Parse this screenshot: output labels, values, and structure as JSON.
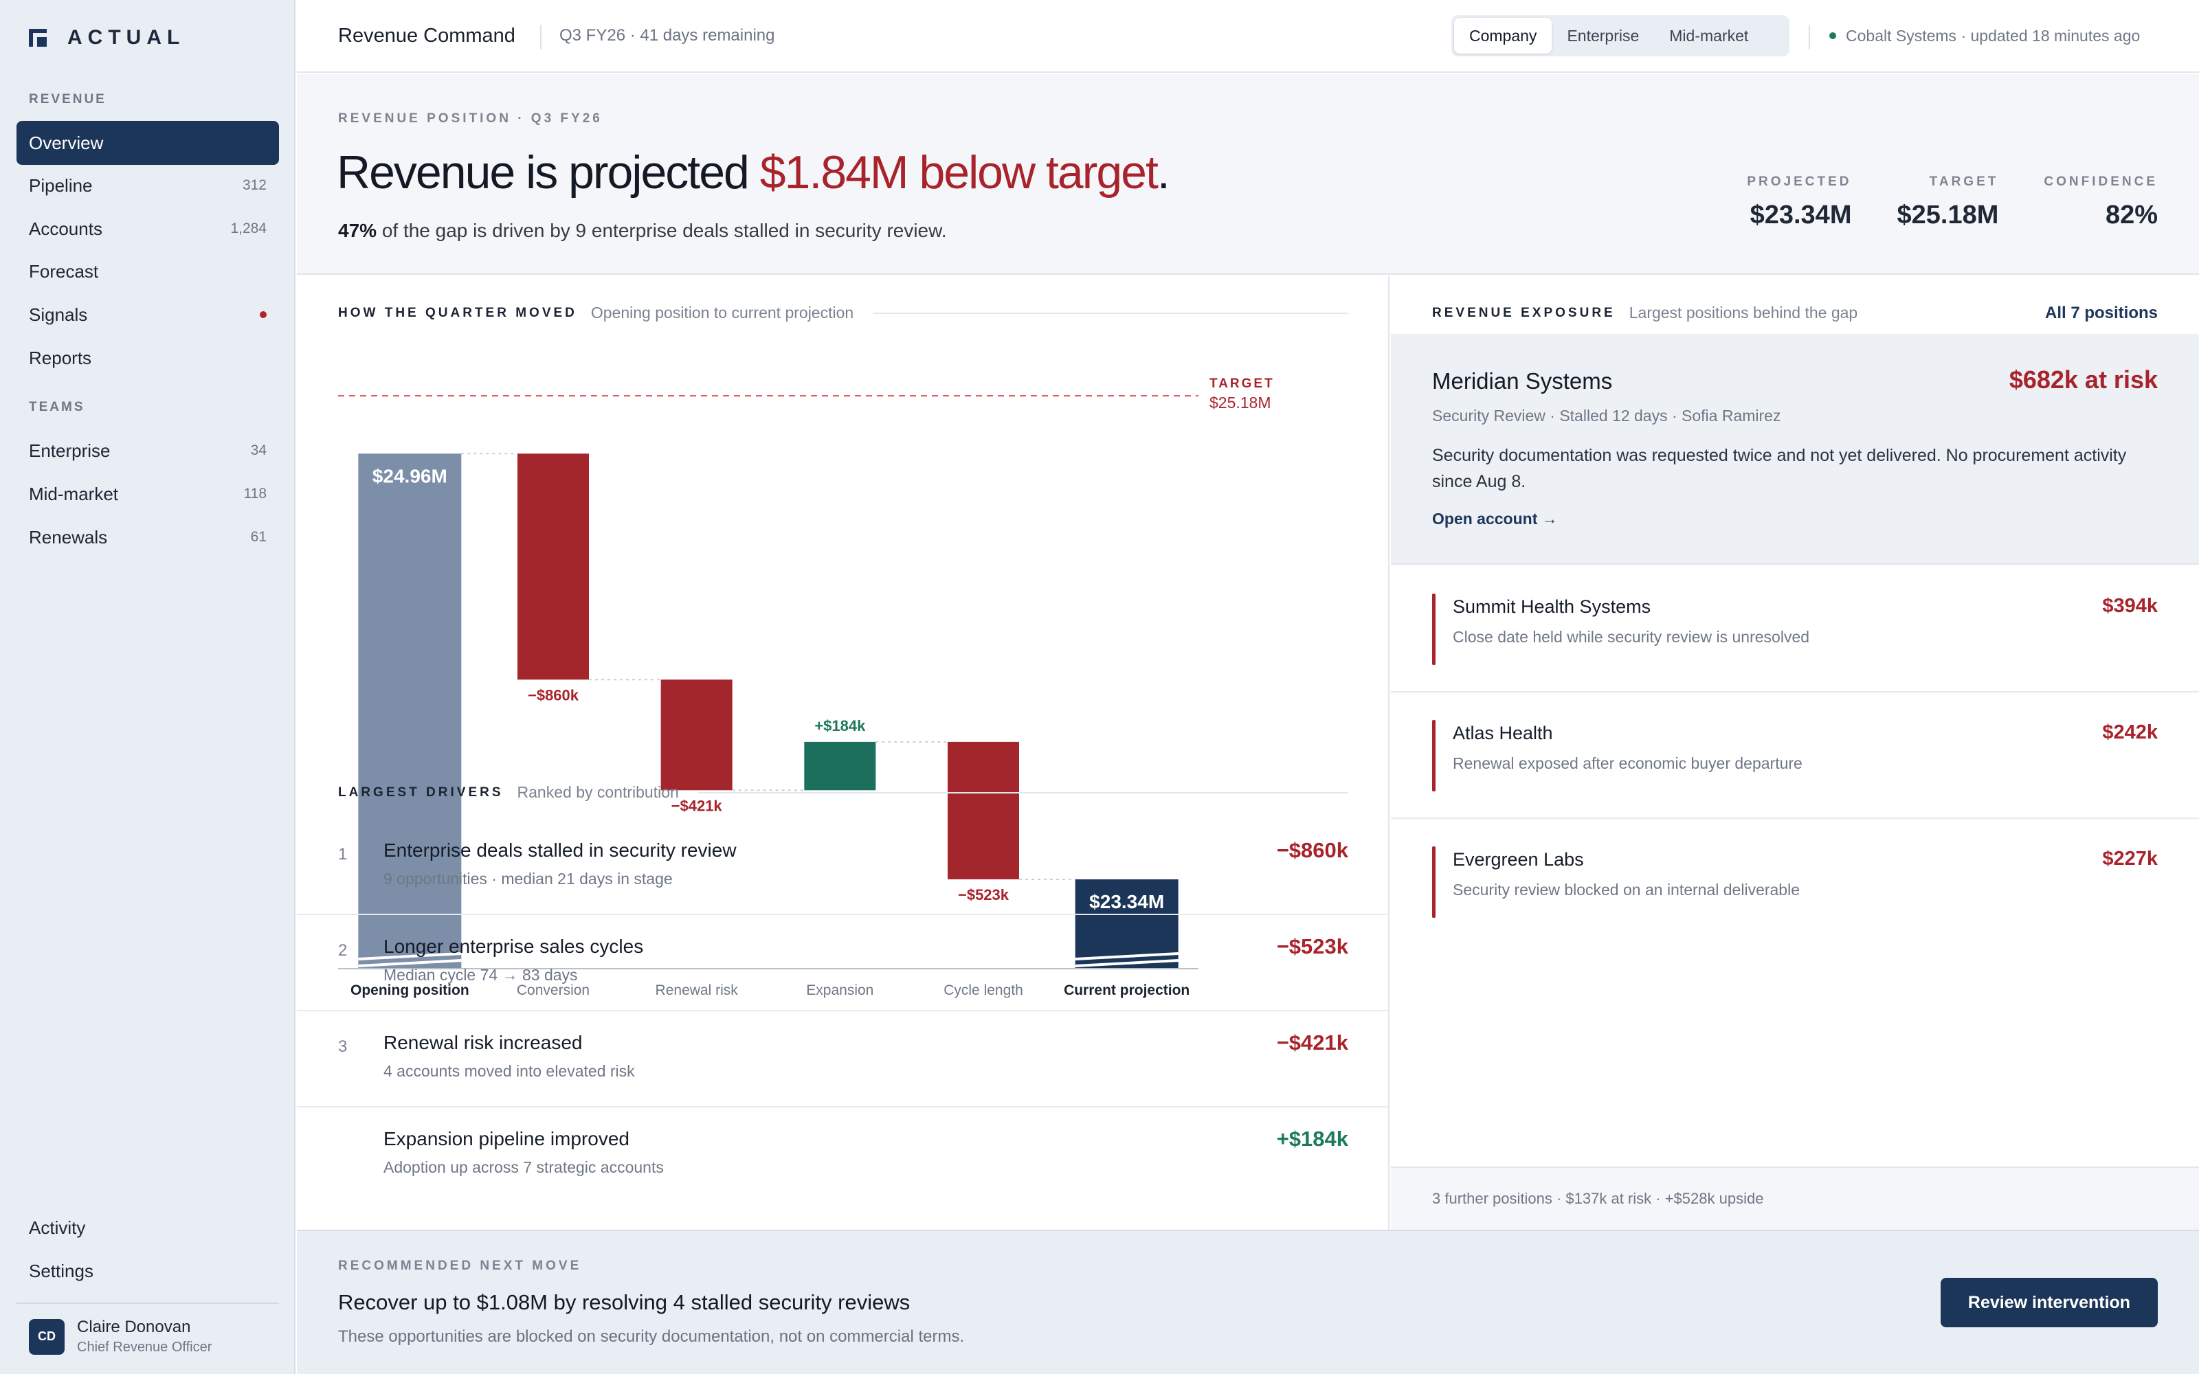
{
  "brand": {
    "name": "ACTUAL"
  },
  "sidebar": {
    "section_revenue": "REVENUE",
    "revenue_items": [
      {
        "label": "Overview",
        "count": "",
        "active": true
      },
      {
        "label": "Pipeline",
        "count": "312"
      },
      {
        "label": "Accounts",
        "count": "1,284"
      },
      {
        "label": "Forecast",
        "count": ""
      },
      {
        "label": "Signals",
        "count": "",
        "alert": true
      },
      {
        "label": "Reports",
        "count": ""
      }
    ],
    "section_teams": "TEAMS",
    "team_items": [
      {
        "label": "Enterprise",
        "count": "34"
      },
      {
        "label": "Mid-market",
        "count": "118"
      },
      {
        "label": "Renewals",
        "count": "61"
      }
    ],
    "bottom_items": [
      {
        "label": "Activity"
      },
      {
        "label": "Settings"
      }
    ],
    "user": {
      "initials": "CD",
      "name": "Claire Donovan",
      "role": "Chief Revenue Officer"
    }
  },
  "header": {
    "title": "Revenue Command",
    "quarter_info": "Q3 FY26 · 41 days remaining",
    "segments": [
      "Company",
      "Enterprise",
      "Mid-market"
    ],
    "active_segment": "Company",
    "status": "Cobalt Systems · updated 18 minutes ago"
  },
  "hero": {
    "eyebrow": "REVENUE POSITION · Q3 FY26",
    "headline_prefix": "Revenue is projected ",
    "headline_highlight": "$1.84M below target",
    "headline_suffix": ".",
    "sub_bold": "47%",
    "sub_rest": " of the gap is driven by 9 enterprise deals stalled in security review.",
    "kpis": [
      {
        "label": "PROJECTED",
        "value": "$23.34M"
      },
      {
        "label": "TARGET",
        "value": "$25.18M"
      },
      {
        "label": "CONFIDENCE",
        "value": "82%"
      }
    ]
  },
  "waterfall": {
    "title": "HOW THE QUARTER MOVED",
    "subtitle": "Opening position to current projection"
  },
  "chart_data": {
    "type": "bar",
    "subtype": "waterfall",
    "units": "USD millions",
    "categories": [
      "Opening position",
      "Conversion",
      "Renewal risk",
      "Expansion",
      "Cycle length",
      "Current projection"
    ],
    "values": [
      24.96,
      -0.86,
      -0.421,
      0.184,
      -0.523,
      23.34
    ],
    "kinds": [
      "total",
      "delta",
      "delta",
      "delta",
      "delta",
      "total"
    ],
    "labels": [
      "$24.96M",
      "−$860k",
      "−$421k",
      "+$184k",
      "−$523k",
      "$23.34M"
    ],
    "target": 25.18,
    "target_label": "TARGET",
    "target_value_label": "$25.18M",
    "ylim": [
      23.0,
      25.4
    ],
    "axis_break": true,
    "colors": {
      "opening": "#7c8ea8",
      "negative": "#a4262d",
      "positive": "#1b6f5c",
      "projection": "#1c3659",
      "target": "#d9505a"
    }
  },
  "drivers": {
    "title": "LARGEST DRIVERS",
    "subtitle": "Ranked by contribution",
    "items": [
      {
        "num": "1",
        "title": "Enterprise deals stalled in security review",
        "sub": "9 opportunities · median 21 days in stage",
        "value": "−$860k",
        "dir": "neg"
      },
      {
        "num": "2",
        "title": "Longer enterprise sales cycles",
        "sub": "Median cycle 74 → 83 days",
        "value": "−$523k",
        "dir": "neg"
      },
      {
        "num": "3",
        "title": "Renewal risk increased",
        "sub": "4 accounts moved into elevated risk",
        "value": "−$421k",
        "dir": "neg"
      },
      {
        "num": "",
        "title": "Expansion pipeline improved",
        "sub": "Adoption up across 7 strategic accounts",
        "value": "+$184k",
        "dir": "pos"
      }
    ]
  },
  "exposure": {
    "title": "REVENUE EXPOSURE",
    "subtitle": "Largest positions behind the gap",
    "all_link": "All 7 positions",
    "featured": {
      "name": "Meridian Systems",
      "risk": "$682k at risk",
      "meta": "Security Review · Stalled 12 days · Sofia Ramirez",
      "desc": "Security documentation was requested twice and not yet delivered. No procurement activity since Aug 8.",
      "link": "Open account →"
    },
    "positions": [
      {
        "name": "Summit Health Systems",
        "sub": "Close date held while security review is unresolved",
        "value": "$394k"
      },
      {
        "name": "Atlas Health",
        "sub": "Renewal exposed after economic buyer departure",
        "value": "$242k"
      },
      {
        "name": "Evergreen Labs",
        "sub": "Security review blocked on an internal deliverable",
        "value": "$227k"
      }
    ],
    "further": "3 further positions · $137k at risk · +$528k upside"
  },
  "recommendation": {
    "eyebrow": "RECOMMENDED NEXT MOVE",
    "title": "Recover up to $1.08M by resolving 4 stalled security reviews",
    "sub": "These opportunities are blocked on security documentation, not on commercial terms.",
    "cta": "Review intervention"
  }
}
